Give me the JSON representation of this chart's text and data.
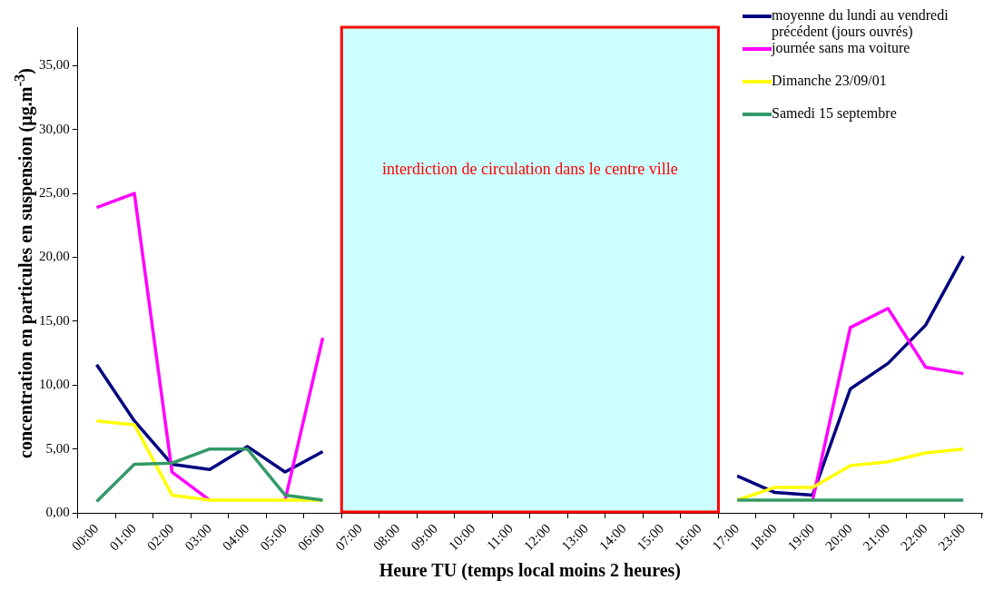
{
  "chart_data": {
    "type": "line",
    "xlabel": "Heure TU (temps local moins 2 heures)",
    "ylabel": "concentration en particules en suspension (µg.m$^{-3}$)",
    "categories": [
      "00:00",
      "01:00",
      "02:00",
      "03:00",
      "04:00",
      "05:00",
      "06:00",
      "07:00",
      "08:00",
      "09:00",
      "10:00",
      "11:00",
      "12:00",
      "13:00",
      "14:00",
      "15:00",
      "16:00",
      "17:00",
      "18:00",
      "19:00",
      "20:00",
      "21:00",
      "22:00",
      "23:00"
    ],
    "series": [
      {
        "name": "moyenne du lundi au vendredi précédent (jours ouvrés)",
        "color": "#000080",
        "values": [
          11.6,
          7.2,
          3.8,
          3.4,
          5.2,
          3.2,
          4.8,
          null,
          null,
          null,
          null,
          null,
          null,
          null,
          null,
          null,
          null,
          2.9,
          1.6,
          1.4,
          9.7,
          11.7,
          14.7,
          20.1
        ]
      },
      {
        "name": "journée sans ma voiture",
        "color": "#ff00ff",
        "values": [
          23.9,
          25.0,
          3.2,
          1.0,
          null,
          1.0,
          13.7,
          null,
          null,
          null,
          null,
          null,
          null,
          null,
          null,
          null,
          null,
          null,
          null,
          1.0,
          14.5,
          16.0,
          11.4,
          10.9
        ]
      },
      {
        "name": "Dimanche 23/09/01",
        "color": "#ffff00",
        "values": [
          7.2,
          6.9,
          1.4,
          1.0,
          1.0,
          1.0,
          1.0,
          null,
          null,
          null,
          null,
          null,
          null,
          null,
          null,
          null,
          null,
          1.0,
          2.0,
          2.0,
          3.7,
          4.0,
          4.7,
          5.0
        ]
      },
      {
        "name": "Samedi 15 septembre",
        "color": "#339966",
        "values": [
          0.9,
          3.8,
          3.9,
          5.0,
          5.0,
          1.4,
          1.0,
          null,
          null,
          null,
          null,
          null,
          null,
          null,
          null,
          null,
          null,
          1.0,
          1.0,
          1.0,
          1.0,
          1.0,
          1.0,
          1.0
        ]
      }
    ],
    "ylim": [
      0,
      38
    ],
    "yticks": [
      {
        "value": 0,
        "label": "0,00"
      },
      {
        "value": 5,
        "label": "5,00"
      },
      {
        "value": 10,
        "label": "10,00"
      },
      {
        "value": 15,
        "label": "15,00"
      },
      {
        "value": 20,
        "label": "20,00"
      },
      {
        "value": 25,
        "label": "25,00"
      },
      {
        "value": 30,
        "label": "30,00"
      },
      {
        "value": 35,
        "label": "35,00"
      }
    ],
    "bands": [
      {
        "axis": "x",
        "from": "07:00",
        "to": "16:00",
        "label": "interdiction de circulation dans le centre ville",
        "color": "#ccffff"
      }
    ],
    "grid": false,
    "legend": "top right",
    "marker": "none",
    "line_style": "solid"
  }
}
